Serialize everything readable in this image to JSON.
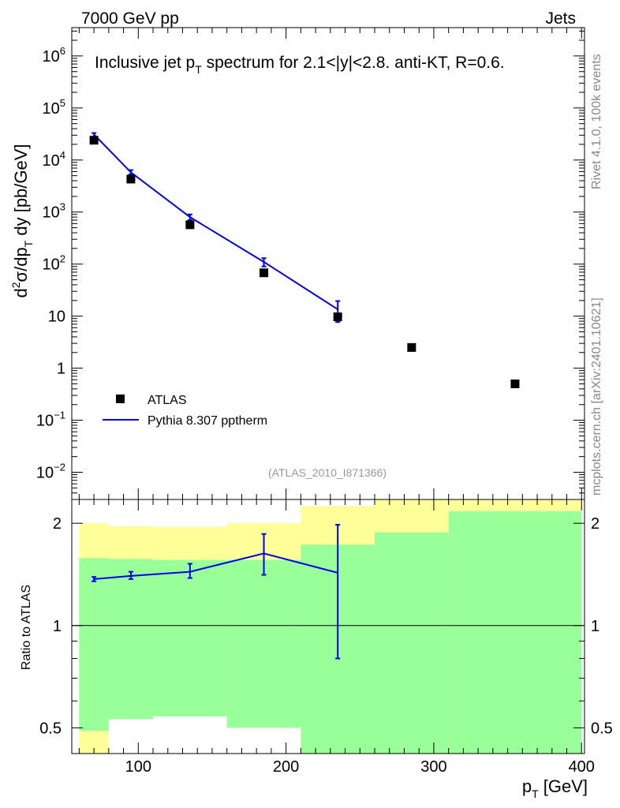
{
  "header": {
    "left": "7000 GeV pp",
    "right": "Jets"
  },
  "side_text": {
    "rivet": "Rivet 4.1.0,  100k events",
    "mcplots": "mcplots.cern.ch [arXiv:2401.10621]"
  },
  "chart_data": [
    {
      "type": "scatter",
      "panel": "main",
      "title": "Inclusive jet p_T spectrum for 2.1<|y|<2.8.  anti-KT, R=0.6.",
      "title_parts": {
        "pre": "Inclusive jet p",
        "sub": "T",
        "post": " spectrum for 2.1<|y|<2.8.  anti-KT, R=0.6."
      },
      "ylabel": "d²σ/dp_T dy [pb/GeV]",
      "ylabel_parts": {
        "d": "d",
        "sup": "2",
        "sigma": "σ/dp",
        "sub": "T",
        "rest": " dy [pb/GeV]"
      },
      "yscale": "log",
      "xlim": [
        55,
        402
      ],
      "ylim": [
        0.003,
        3500000
      ],
      "y_ticks": [
        {
          "value": 0.01,
          "base": "10",
          "exp": "−2"
        },
        {
          "value": 0.1,
          "base": "10",
          "exp": "−1"
        },
        {
          "value": 1,
          "base": "1",
          "exp": ""
        },
        {
          "value": 10,
          "base": "10",
          "exp": ""
        },
        {
          "value": 100,
          "base": "10",
          "exp": "2"
        },
        {
          "value": 1000,
          "base": "10",
          "exp": "3"
        },
        {
          "value": 10000,
          "base": "10",
          "exp": "4"
        },
        {
          "value": 100000,
          "base": "10",
          "exp": "5"
        },
        {
          "value": 1000000,
          "base": "10",
          "exp": "6"
        }
      ],
      "legend_position": "lower-left",
      "watermark": "(ATLAS_2010_I871366)",
      "series": [
        {
          "name": "ATLAS",
          "style": "markers",
          "color": "#000000",
          "x": [
            70,
            95,
            135,
            185,
            235,
            285,
            355
          ],
          "y": [
            24000,
            4300,
            570,
            68,
            9.7,
            2.5,
            0.5
          ]
        },
        {
          "name": "Pythia 8.307 pptherm",
          "style": "line",
          "color": "#0000ee",
          "x": [
            70,
            95,
            135,
            185,
            235
          ],
          "y": [
            31000,
            5800,
            800,
            110,
            13.5
          ],
          "err_lo": [
            27000,
            5300,
            700,
            90,
            7.7
          ],
          "err_hi": [
            33000,
            6400,
            900,
            130,
            19.5
          ]
        }
      ]
    },
    {
      "type": "line",
      "panel": "ratio",
      "ylabel": "Ratio to ATLAS",
      "yscale": "log",
      "xlim": [
        55,
        402
      ],
      "ylim": [
        0.42,
        2.35
      ],
      "y_ticks": [
        0.5,
        1,
        2
      ],
      "x_ticks": [
        100,
        200,
        300,
        400
      ],
      "xlabel_parts": {
        "p": "p",
        "sub": "T",
        "rest": " [GeV]"
      },
      "bands": [
        {
          "x0": 60,
          "x1": 80,
          "yellow": [
            0.35,
            2.0
          ],
          "green": [
            0.49,
            1.58
          ]
        },
        {
          "x0": 80,
          "x1": 110,
          "yellow": [
            0.53,
            1.96
          ],
          "green": [
            0.53,
            1.57
          ]
        },
        {
          "x0": 110,
          "x1": 160,
          "yellow": [
            0.54,
            1.95
          ],
          "green": [
            0.54,
            1.56
          ]
        },
        {
          "x0": 160,
          "x1": 210,
          "yellow": [
            0.5,
            2.0
          ],
          "green": [
            0.5,
            1.56
          ]
        },
        {
          "x0": 210,
          "x1": 260,
          "yellow": [
            0.35,
            2.25
          ],
          "green": [
            0.35,
            1.73
          ]
        },
        {
          "x0": 260,
          "x1": 310,
          "yellow": [
            0.35,
            2.4
          ],
          "green": [
            0.35,
            1.88
          ]
        },
        {
          "x0": 310,
          "x1": 400,
          "yellow": [
            0.35,
            2.4
          ],
          "green": [
            0.35,
            2.17
          ]
        }
      ],
      "colors": {
        "yellow": "#ffff99",
        "green": "#99ff99",
        "mc": "#0000ee"
      },
      "reference": 1,
      "series": [
        {
          "name": "Pythia 8.307 pptherm",
          "x": [
            70,
            95,
            135,
            185,
            235
          ],
          "y": [
            1.37,
            1.4,
            1.44,
            1.63,
            1.43
          ],
          "err_lo": [
            1.35,
            1.37,
            1.38,
            1.41,
            0.8
          ],
          "err_hi": [
            1.39,
            1.44,
            1.52,
            1.86,
            1.98
          ]
        }
      ]
    }
  ]
}
